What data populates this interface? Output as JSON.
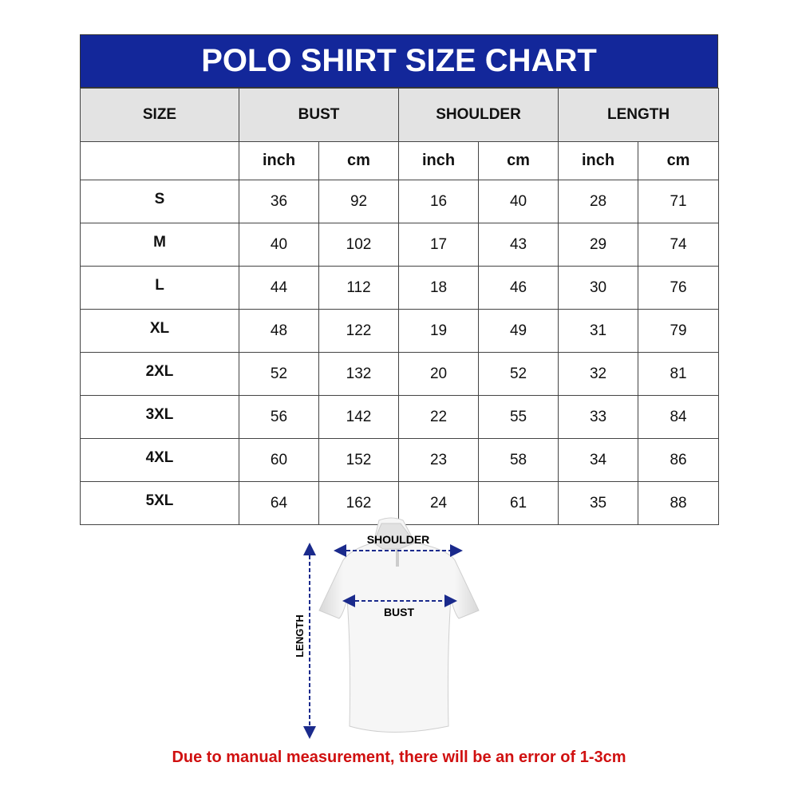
{
  "title": "POLO SHIRT SIZE CHART",
  "headers": {
    "size": "SIZE",
    "bust": "BUST",
    "shoulder": "SHOULDER",
    "length": "LENGTH"
  },
  "units": [
    "inch",
    "cm",
    "inch",
    "cm",
    "inch",
    "cm"
  ],
  "rows": [
    {
      "size": "S",
      "values": [
        "36",
        "92",
        "16",
        "40",
        "28",
        "71"
      ]
    },
    {
      "size": "M",
      "values": [
        "40",
        "102",
        "17",
        "43",
        "29",
        "74"
      ]
    },
    {
      "size": "L",
      "values": [
        "44",
        "112",
        "18",
        "46",
        "30",
        "76"
      ]
    },
    {
      "size": "XL",
      "values": [
        "48",
        "122",
        "19",
        "49",
        "31",
        "79"
      ]
    },
    {
      "size": "2XL",
      "values": [
        "52",
        "132",
        "20",
        "52",
        "32",
        "81"
      ]
    },
    {
      "size": "3XL",
      "values": [
        "56",
        "142",
        "22",
        "55",
        "33",
        "84"
      ]
    },
    {
      "size": "4XL",
      "values": [
        "60",
        "152",
        "23",
        "58",
        "34",
        "86"
      ]
    },
    {
      "size": "5XL",
      "values": [
        "64",
        "162",
        "24",
        "61",
        "35",
        "88"
      ]
    }
  ],
  "diagram": {
    "shoulder": "SHOULDER",
    "bust": "BUST",
    "length": "LENGTH"
  },
  "note": "Due to manual measurement, there will be an error of 1-3cm",
  "colors": {
    "title_bg": "#13279a",
    "header_bg": "#e3e3e3",
    "note": "#d01010",
    "arrow": "#1a2a8c"
  }
}
